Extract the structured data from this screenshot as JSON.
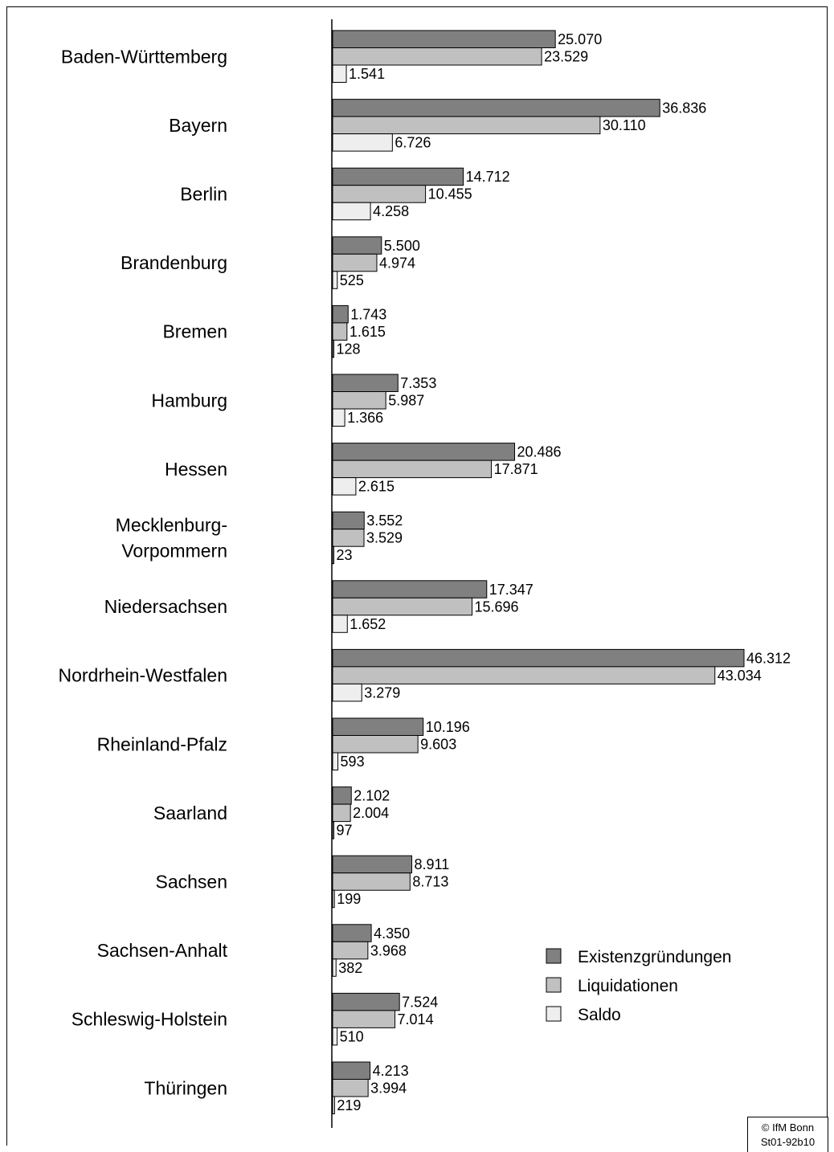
{
  "colors": {
    "existenzgruendungen": "#808080",
    "liquidationen": "#c0c0c0",
    "saldo": "#eeeeee",
    "stroke": "#000000"
  },
  "legend": {
    "items": [
      {
        "label": "Existenzgründungen",
        "color_key": "existenzgruendungen"
      },
      {
        "label": "Liquidationen",
        "color_key": "liquidationen"
      },
      {
        "label": "Saldo",
        "color_key": "saldo"
      }
    ]
  },
  "credit": {
    "line1": "© IfM Bonn",
    "line2": "St01-92b10"
  },
  "chart_data": {
    "type": "bar",
    "orientation": "horizontal",
    "categories": [
      [
        "Baden-Württemberg"
      ],
      [
        "Bayern"
      ],
      [
        "Berlin"
      ],
      [
        "Brandenburg"
      ],
      [
        "Bremen"
      ],
      [
        "Hamburg"
      ],
      [
        "Hessen"
      ],
      [
        "Mecklenburg-",
        "Vorpommern"
      ],
      [
        "Niedersachsen"
      ],
      [
        "Nordrhein-Westfalen"
      ],
      [
        "Rheinland-Pfalz"
      ],
      [
        "Saarland"
      ],
      [
        "Sachsen"
      ],
      [
        "Sachsen-Anhalt"
      ],
      [
        "Schleswig-Holstein"
      ],
      [
        "Thüringen"
      ]
    ],
    "series": [
      {
        "name": "Existenzgründungen",
        "color_key": "existenzgruendungen",
        "values": [
          25070,
          36836,
          14712,
          5500,
          1743,
          7353,
          20486,
          3552,
          17347,
          46312,
          10196,
          2102,
          8911,
          4350,
          7524,
          4213
        ],
        "labels": [
          "25.070",
          "36.836",
          "14.712",
          "5.500",
          "1.743",
          "7.353",
          "20.486",
          "3.552",
          "17.347",
          "46.312",
          "10.196",
          "2.102",
          "8.911",
          "4.350",
          "7.524",
          "4.213"
        ]
      },
      {
        "name": "Liquidationen",
        "color_key": "liquidationen",
        "values": [
          23529,
          30110,
          10455,
          4974,
          1615,
          5987,
          17871,
          3529,
          15696,
          43034,
          9603,
          2004,
          8713,
          3968,
          7014,
          3994
        ],
        "labels": [
          "23.529",
          "30.110",
          "10.455",
          "4.974",
          "1.615",
          "5.987",
          "17.871",
          "3.529",
          "15.696",
          "43.034",
          "9.603",
          "2.004",
          "8.713",
          "3.968",
          "7.014",
          "3.994"
        ]
      },
      {
        "name": "Saldo",
        "color_key": "saldo",
        "values": [
          1541,
          6726,
          4258,
          525,
          128,
          1366,
          2615,
          23,
          1652,
          3279,
          593,
          97,
          199,
          382,
          510,
          219
        ],
        "labels": [
          "1.541",
          "6.726",
          "4.258",
          "525",
          "128",
          "1.366",
          "2.615",
          "23",
          "1.652",
          "3.279",
          "593",
          "97",
          "199",
          "382",
          "510",
          "219"
        ]
      }
    ],
    "xlim": [
      0,
      48000
    ],
    "legend_position": "bottom-right",
    "grid": false
  }
}
